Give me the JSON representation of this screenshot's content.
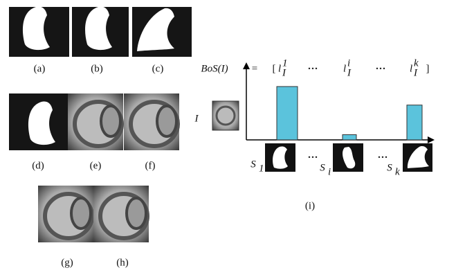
{
  "panels": {
    "labels": [
      "(a)",
      "(b)",
      "(c)",
      "(d)",
      "(e)",
      "(f)",
      "(g)",
      "(h)",
      "(i)"
    ]
  },
  "diagram": {
    "formula": {
      "lhs": "BoS(I)",
      "eq": "=",
      "open": "[",
      "close": "]",
      "terms": [
        {
          "base": "l",
          "sub": "I",
          "sup": "1"
        },
        {
          "base": "l",
          "sub": "I",
          "sup": "i"
        },
        {
          "base": "l",
          "sub": "I",
          "sup": "k"
        }
      ],
      "dots": [
        "···",
        "···"
      ]
    },
    "image_label": "I",
    "bars": {
      "values": [
        0.72,
        0.07,
        0.47
      ],
      "color": "#5bc3dc"
    },
    "shapes": [
      {
        "base": "S",
        "sub": "1"
      },
      {
        "base": "S",
        "sub": "i"
      },
      {
        "base": "S",
        "sub": "k"
      }
    ],
    "shape_dots": [
      "···",
      "···"
    ]
  }
}
